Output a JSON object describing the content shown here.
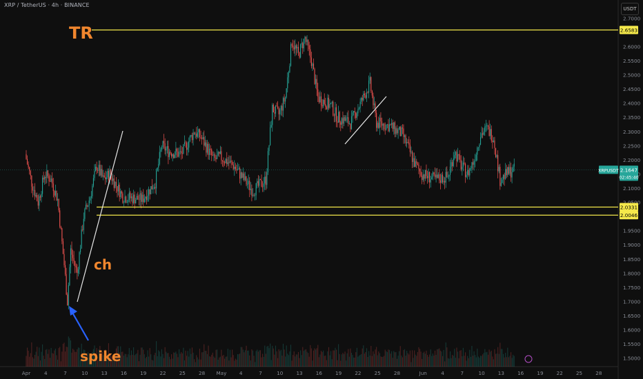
{
  "header": {
    "symbol": "XRP / TetherUS · 4h · BINANCE",
    "currency_button": "USDT"
  },
  "chart_data": {
    "type": "candlestick",
    "symbol": "XRPUSDT",
    "y_axis": {
      "range": [
        1.47,
        2.73
      ],
      "ticks": [
        "2.7000",
        "2.6000",
        "2.5500",
        "2.5000",
        "2.4500",
        "2.4000",
        "2.3500",
        "2.3000",
        "2.2500",
        "2.2000",
        "2.1500",
        "2.1000",
        "2.0500",
        "1.9500",
        "1.9000",
        "1.8500",
        "1.8000",
        "1.7500",
        "1.7000",
        "1.6500",
        "1.6000",
        "1.5500",
        "1.5000"
      ]
    },
    "x_axis": {
      "ticks": [
        "Apr",
        "4",
        "7",
        "10",
        "13",
        "16",
        "19",
        "22",
        "25",
        "28",
        "May",
        "4",
        "7",
        "10",
        "13",
        "16",
        "19",
        "22",
        "25",
        "28",
        "Jun",
        "4",
        "7",
        "10",
        "13",
        "16",
        "19",
        "22",
        "25",
        "28"
      ]
    },
    "last_price": "2.1647",
    "countdown": "02:45:40",
    "price_labels": [
      "2.6583",
      "2.0331",
      "2.0046"
    ],
    "horizontal_levels": [
      2.6583,
      2.0331,
      2.0046
    ],
    "price_path": [
      [
        "Apr 1",
        2.22
      ],
      [
        "Apr 2",
        2.12
      ],
      [
        "Apr 3",
        2.05
      ],
      [
        "Apr 4",
        2.15
      ],
      [
        "Apr 5",
        2.13
      ],
      [
        "Apr 6",
        2.06
      ],
      [
        "Apr 7",
        1.83
      ],
      [
        "Apr 7",
        1.7
      ],
      [
        "Apr 8",
        1.88
      ],
      [
        "Apr 9",
        1.8
      ],
      [
        "Apr 10",
        2.0
      ],
      [
        "Apr 11",
        2.07
      ],
      [
        "Apr 12",
        2.18
      ],
      [
        "Apr 13",
        2.13
      ],
      [
        "Apr 14",
        2.15
      ],
      [
        "Apr 16",
        2.07
      ],
      [
        "Apr 19",
        2.06
      ],
      [
        "Apr 21",
        2.12
      ],
      [
        "Apr 22",
        2.25
      ],
      [
        "Apr 23",
        2.23
      ],
      [
        "Apr 25",
        2.22
      ],
      [
        "Apr 27",
        2.3
      ],
      [
        "Apr 28",
        2.28
      ],
      [
        "Apr 30",
        2.2
      ],
      [
        "May 1",
        2.21
      ],
      [
        "May 3",
        2.18
      ],
      [
        "May 5",
        2.12
      ],
      [
        "May 6",
        2.09
      ],
      [
        "May 8",
        2.13
      ],
      [
        "May 9",
        2.38
      ],
      [
        "May 10",
        2.36
      ],
      [
        "May 11",
        2.42
      ],
      [
        "May 12",
        2.62
      ],
      [
        "May 13",
        2.57
      ],
      [
        "May 14",
        2.63
      ],
      [
        "May 15",
        2.55
      ],
      [
        "May 16",
        2.42
      ],
      [
        "May 18",
        2.39
      ],
      [
        "May 19",
        2.35
      ],
      [
        "May 21",
        2.33
      ],
      [
        "May 23",
        2.42
      ],
      [
        "May 24",
        2.47
      ],
      [
        "May 25",
        2.33
      ],
      [
        "May 27",
        2.32
      ],
      [
        "May 29",
        2.29
      ],
      [
        "May 31",
        2.18
      ],
      [
        "Jun 1",
        2.15
      ],
      [
        "Jun 3",
        2.13
      ],
      [
        "Jun 5",
        2.14
      ],
      [
        "Jun 6",
        2.23
      ],
      [
        "Jun 7",
        2.18
      ],
      [
        "Jun 8",
        2.15
      ],
      [
        "Jun 9",
        2.2
      ],
      [
        "Jun 10",
        2.29
      ],
      [
        "Jun 11",
        2.31
      ],
      [
        "Jun 12",
        2.28
      ],
      [
        "Jun 13",
        2.13
      ],
      [
        "Jun 14",
        2.15
      ],
      [
        "Jun 15",
        2.1647
      ]
    ],
    "annotations": [
      {
        "text": "TR",
        "color": "#f0862e"
      },
      {
        "text": "ch",
        "color": "#f0862e"
      },
      {
        "text": "spike",
        "color": "#f0862e"
      }
    ]
  }
}
